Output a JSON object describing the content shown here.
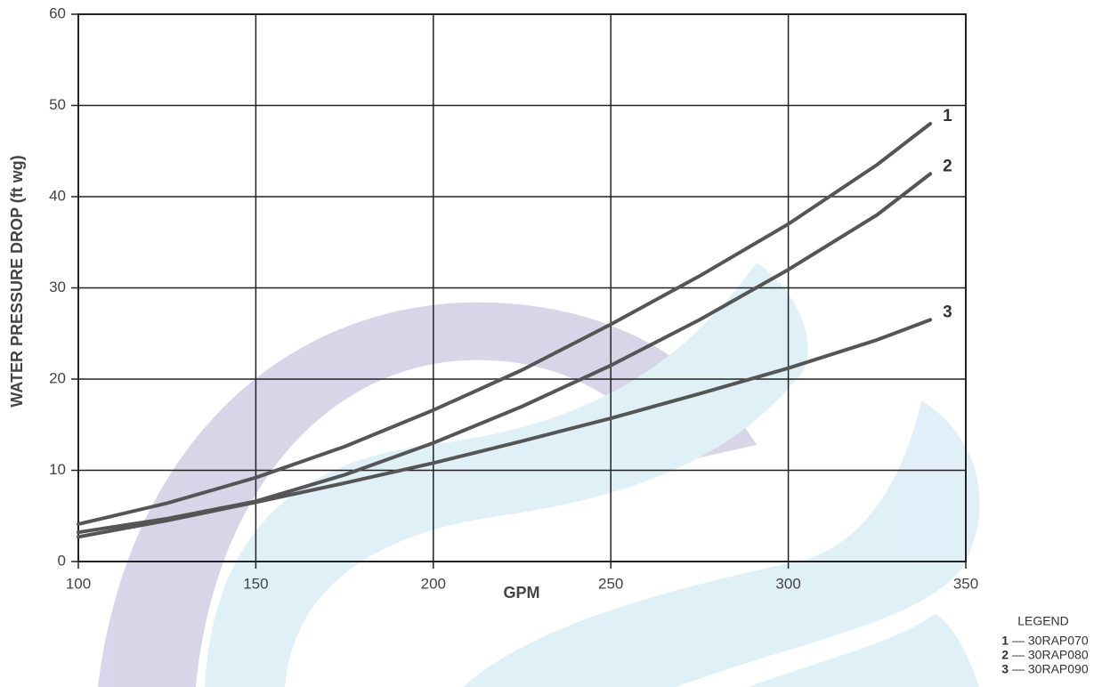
{
  "chart_data": {
    "type": "line",
    "x_label": "GPM",
    "y_label": "WATER PRESSURE DROP (ft wg)",
    "x": [
      100,
      125,
      150,
      175,
      200,
      225,
      250,
      275,
      300,
      325,
      340
    ],
    "series": [
      {
        "name": "1",
        "color": "#555555",
        "values": [
          4.1,
          6.4,
          9.2,
          12.6,
          16.6,
          21.0,
          26.0,
          31.3,
          37.0,
          43.5,
          48.0
        ]
      },
      {
        "name": "2",
        "color": "#555555",
        "values": [
          3.2,
          4.7,
          6.6,
          9.5,
          13.0,
          17.0,
          21.5,
          26.5,
          32.0,
          38.0,
          42.5
        ]
      },
      {
        "name": "3",
        "color": "#555555",
        "values": [
          2.7,
          4.5,
          6.5,
          8.6,
          10.8,
          13.2,
          15.7,
          18.4,
          21.2,
          24.3,
          26.5
        ]
      }
    ],
    "xlim": [
      100,
      350
    ],
    "xticks": [
      100,
      150,
      200,
      250,
      300,
      350
    ],
    "ylim": [
      0,
      60
    ],
    "yticks": [
      0,
      10,
      20,
      30,
      40,
      50,
      60
    ],
    "grid": true,
    "legend": {
      "title": "LEGEND",
      "entries": [
        "— 30RAP070",
        "— 30RAP080",
        "— 30RAP090"
      ]
    }
  }
}
